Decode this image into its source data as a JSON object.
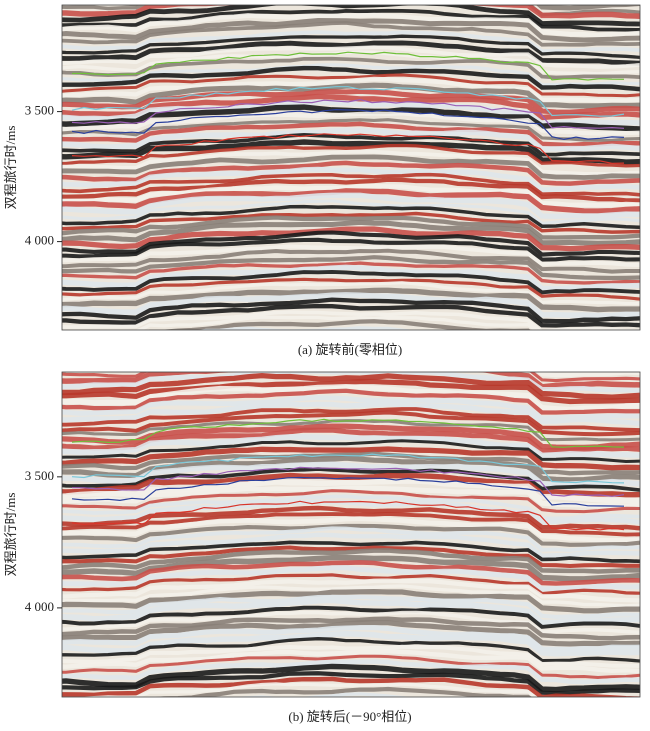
{
  "chart_data": [
    {
      "type": "seismic",
      "caption": "(a) 旋转前(零相位)",
      "ylabel": "双程旅行时/ms",
      "ylim": [
        4340,
        3090
      ],
      "yticks": [
        {
          "value": 3500,
          "label": "3 500"
        },
        {
          "value": 4000,
          "label": "4 000"
        }
      ]
    },
    {
      "type": "seismic",
      "caption": "(b) 旋转后(－90°相位)",
      "ylabel": "双程旅行时/ms",
      "ylim": [
        4340,
        3100
      ],
      "yticks": [
        {
          "value": 3500,
          "label": "3 500"
        },
        {
          "value": 4000,
          "label": "4 000"
        }
      ]
    }
  ]
}
